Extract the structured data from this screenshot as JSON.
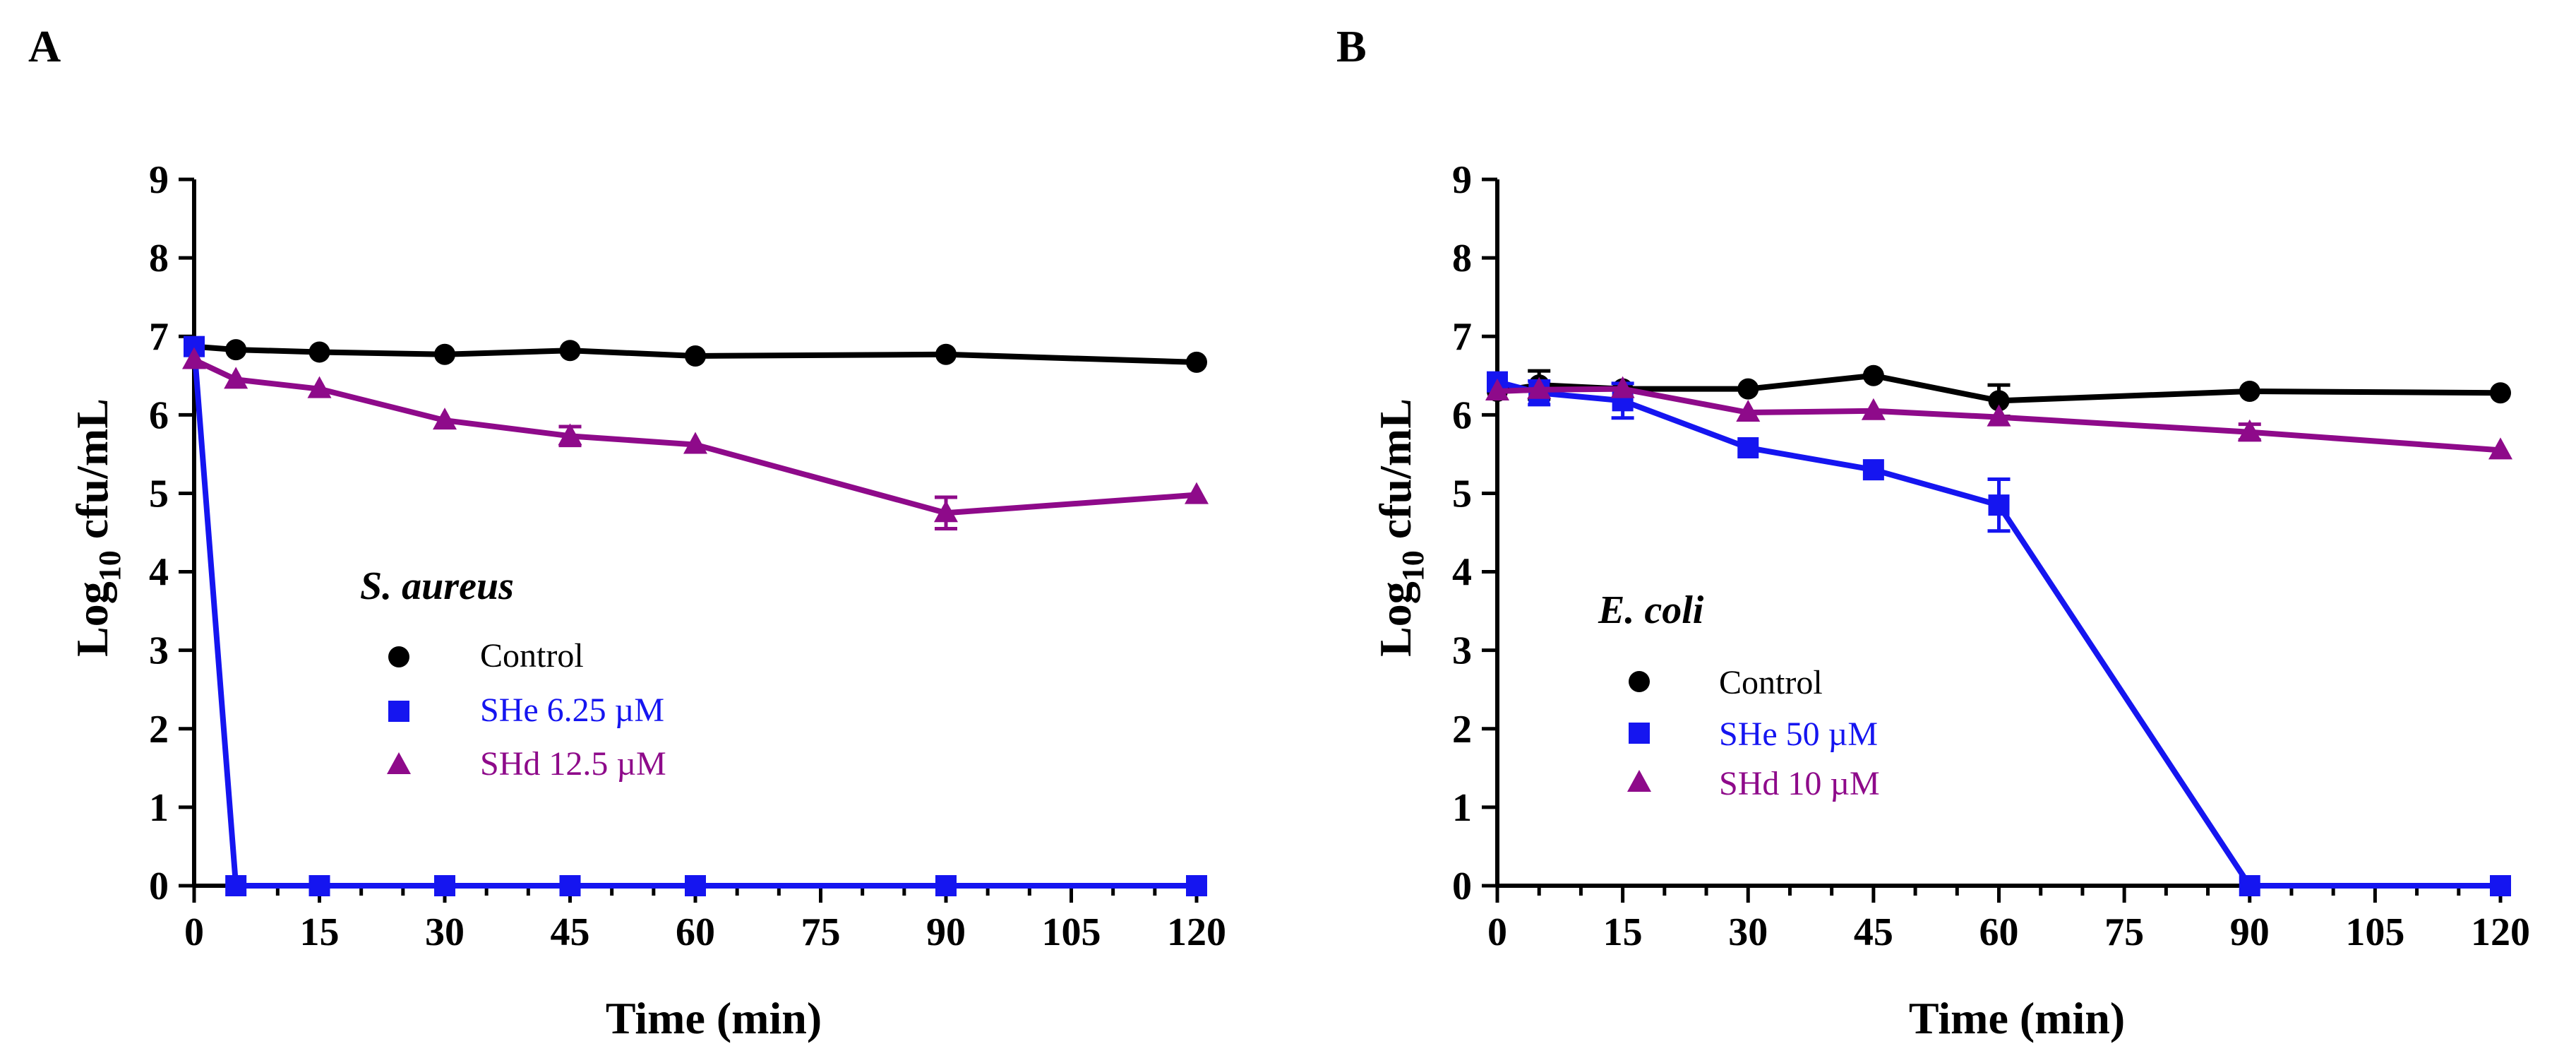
{
  "chart_data": [
    {
      "panel": "A",
      "type": "line",
      "organism": "S. aureus",
      "xlabel": "Time (min)",
      "ylabel_main": "Log",
      "ylabel_sub": "10",
      "ylabel_rest": " cfu/mL",
      "xlim": [
        0,
        120
      ],
      "ylim": [
        0,
        9
      ],
      "xticks": [
        "0",
        "15",
        "30",
        "45",
        "60",
        "75",
        "90",
        "105",
        "120"
      ],
      "yticks": [
        "0",
        "1",
        "2",
        "3",
        "4",
        "5",
        "6",
        "7",
        "8",
        "9"
      ],
      "series": [
        {
          "name": "Control",
          "marker": "circle",
          "color": "#000000",
          "x": [
            0,
            5,
            15,
            30,
            45,
            60,
            90,
            120
          ],
          "y": [
            6.87,
            6.83,
            6.8,
            6.77,
            6.82,
            6.75,
            6.77,
            6.67
          ],
          "err": [
            0,
            0,
            0,
            0,
            0,
            0,
            0,
            0
          ]
        },
        {
          "name": "SHe 6.25 µM",
          "marker": "square",
          "color": "#1515f0",
          "x": [
            0,
            5,
            15,
            30,
            45,
            60,
            90,
            120
          ],
          "y": [
            6.87,
            0,
            0,
            0,
            0,
            0,
            0,
            0
          ],
          "err": [
            0,
            0,
            0,
            0,
            0,
            0,
            0,
            0
          ]
        },
        {
          "name": "SHd 12.5 µM",
          "marker": "triangle",
          "color": "#8e0a8a",
          "x": [
            0,
            5,
            15,
            30,
            45,
            60,
            90,
            120
          ],
          "y": [
            6.7,
            6.45,
            6.33,
            5.93,
            5.73,
            5.62,
            4.75,
            4.98
          ],
          "err": [
            0,
            0,
            0,
            0,
            0.12,
            0,
            0.2,
            0
          ]
        }
      ]
    },
    {
      "panel": "B",
      "type": "line",
      "organism": "E. coli",
      "xlabel": "Time (min)",
      "ylabel_main": "Log",
      "ylabel_sub": "10",
      "ylabel_rest": " cfu/mL",
      "xlim": [
        0,
        120
      ],
      "ylim": [
        0,
        9
      ],
      "xticks": [
        "0",
        "15",
        "30",
        "45",
        "60",
        "75",
        "90",
        "105",
        "120"
      ],
      "yticks": [
        "0",
        "1",
        "2",
        "3",
        "4",
        "5",
        "6",
        "7",
        "8",
        "9"
      ],
      "series": [
        {
          "name": "Control",
          "marker": "circle",
          "color": "#000000",
          "x": [
            0,
            5,
            15,
            30,
            45,
            60,
            90,
            120
          ],
          "y": [
            6.3,
            6.38,
            6.33,
            6.33,
            6.5,
            6.18,
            6.3,
            6.28
          ],
          "err": [
            0,
            0.18,
            0,
            0,
            0,
            0.2,
            0,
            0
          ]
        },
        {
          "name": "SHe 50  µM",
          "marker": "square",
          "color": "#1515f0",
          "x": [
            0,
            5,
            15,
            30,
            45,
            60,
            90,
            120
          ],
          "y": [
            6.42,
            6.28,
            6.18,
            5.58,
            5.3,
            4.85,
            0,
            0
          ],
          "err": [
            0,
            0.15,
            0.22,
            0,
            0,
            0.33,
            0,
            0
          ]
        },
        {
          "name": "SHd 10 µM",
          "marker": "triangle",
          "color": "#8e0a8a",
          "x": [
            0,
            5,
            15,
            30,
            45,
            60,
            90,
            120
          ],
          "y": [
            6.3,
            6.32,
            6.33,
            6.03,
            6.05,
            5.97,
            5.78,
            5.55
          ],
          "err": [
            0,
            0,
            0,
            0,
            0,
            0,
            0.1,
            0
          ]
        }
      ]
    }
  ]
}
